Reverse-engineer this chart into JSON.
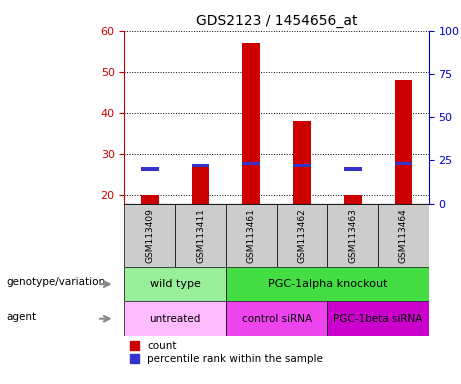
{
  "title": "GDS2123 / 1454656_at",
  "samples": [
    "GSM113409",
    "GSM113411",
    "GSM113461",
    "GSM113462",
    "GSM113463",
    "GSM113464"
  ],
  "counts": [
    20,
    27,
    57,
    38,
    20,
    48
  ],
  "percentile_ranks": [
    20,
    22,
    23,
    22,
    20,
    23
  ],
  "ylim_left": [
    18,
    60
  ],
  "ylim_right": [
    0,
    100
  ],
  "yticks_left": [
    20,
    30,
    40,
    50,
    60
  ],
  "yticks_right": [
    0,
    25,
    50,
    75,
    100
  ],
  "bar_color": "#cc0000",
  "percentile_color": "#3333cc",
  "bar_width": 0.35,
  "genotype_groups": [
    {
      "label": "wild type",
      "start": 0,
      "end": 1,
      "color": "#99ee99"
    },
    {
      "label": "PGC-1alpha knockout",
      "start": 2,
      "end": 5,
      "color": "#44dd44"
    }
  ],
  "agent_groups": [
    {
      "label": "untreated",
      "start": 0,
      "end": 1,
      "color": "#ffbbff"
    },
    {
      "label": "control siRNA",
      "start": 2,
      "end": 3,
      "color": "#ee44ee"
    },
    {
      "label": "PGC-1beta siRNA",
      "start": 4,
      "end": 5,
      "color": "#cc00cc"
    }
  ],
  "legend_count_label": "count",
  "legend_percentile_label": "percentile rank within the sample",
  "genotype_label": "genotype/variation",
  "agent_label": "agent",
  "sample_box_color": "#cccccc",
  "left_label_color": "#cc0000",
  "right_label_color": "#0000cc"
}
